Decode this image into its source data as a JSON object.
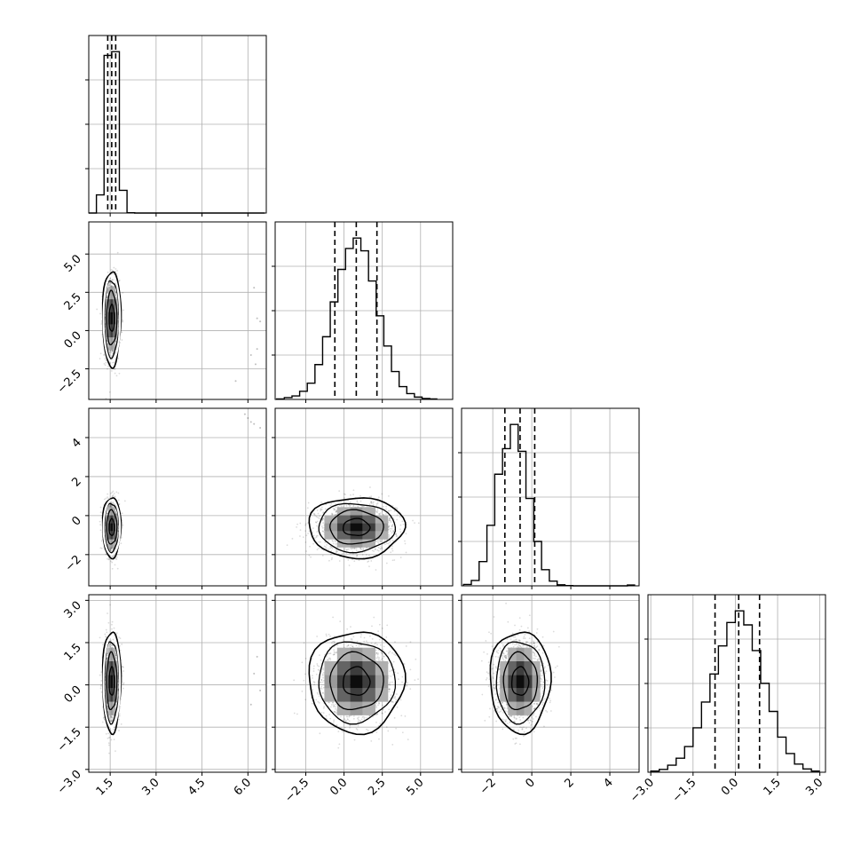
{
  "chart_data": {
    "type": "corner",
    "parameters": [
      {
        "ticks": [
          1.5,
          3.0,
          4.5,
          6.0
        ],
        "tick_labels": [
          "1.5",
          "3.0",
          "4.5",
          "6.0"
        ],
        "range": [
          0.8,
          6.6
        ]
      },
      {
        "ticks": [
          -2.5,
          0.0,
          2.5,
          5.0
        ],
        "tick_labels": [
          "−2.5",
          "0.0",
          "2.5",
          "5.0"
        ],
        "range": [
          -4.5,
          7.1
        ]
      },
      {
        "ticks": [
          -2,
          0,
          2,
          4
        ],
        "tick_labels": [
          "−2",
          "0",
          "2",
          "4"
        ],
        "range": [
          -3.6,
          5.5
        ]
      },
      {
        "ticks": [
          -3.0,
          -1.5,
          0.0,
          1.5,
          3.0
        ],
        "tick_labels": [
          "−3.0",
          "−1.5",
          "0.0",
          "1.5",
          "3.0"
        ],
        "range": [
          -3.1,
          3.2
        ]
      }
    ],
    "quantiles": [
      [
        1.42,
        1.55,
        1.68
      ],
      [
        -0.6,
        0.8,
        2.15
      ],
      [
        -1.38,
        -0.6,
        0.15
      ],
      [
        -0.72,
        0.12,
        0.86
      ]
    ],
    "marginals": [
      {
        "bin_edges": [
          0.8,
          1.05,
          1.3,
          1.55,
          1.8,
          2.05,
          2.3,
          2.55,
          2.8,
          3.05,
          3.3,
          3.55,
          3.8,
          4.05,
          4.3,
          4.55,
          4.8,
          5.05,
          5.3,
          5.55,
          5.8,
          6.05,
          6.3,
          6.55
        ],
        "counts": [
          0,
          120,
          1040,
          1065,
          150,
          2,
          0,
          0,
          0,
          0,
          0,
          0,
          0,
          0,
          0,
          0,
          0,
          0,
          0,
          0,
          0,
          0,
          0
        ]
      },
      {
        "bin_edges": [
          -4.4,
          -3.9,
          -3.4,
          -2.9,
          -2.4,
          -1.9,
          -1.4,
          -0.9,
          -0.4,
          0.1,
          0.6,
          1.1,
          1.6,
          2.1,
          2.6,
          3.1,
          3.6,
          4.1,
          4.6,
          5.1,
          5.6,
          6.1
        ],
        "counts": [
          2,
          8,
          15,
          35,
          70,
          150,
          270,
          420,
          560,
          650,
          695,
          640,
          510,
          360,
          230,
          120,
          55,
          25,
          10,
          4,
          2
        ]
      },
      {
        "bin_edges": [
          -3.5,
          -3.1,
          -2.7,
          -2.3,
          -1.9,
          -1.5,
          -1.1,
          -0.7,
          -0.3,
          0.1,
          0.5,
          0.9,
          1.3,
          1.7,
          2.1,
          2.5,
          2.9,
          3.3,
          3.7,
          4.1,
          4.5,
          4.9,
          5.3
        ],
        "counts": [
          10,
          40,
          180,
          450,
          830,
          1020,
          1200,
          1000,
          650,
          330,
          120,
          35,
          8,
          2,
          0,
          0,
          0,
          0,
          0,
          0,
          0,
          6
        ]
      },
      {
        "bin_edges": [
          -3.0,
          -2.7,
          -2.4,
          -2.1,
          -1.8,
          -1.5,
          -1.2,
          -0.9,
          -0.6,
          -0.3,
          0.0,
          0.3,
          0.6,
          0.9,
          1.2,
          1.5,
          1.8,
          2.1,
          2.4,
          2.7,
          3.0
        ],
        "counts": [
          5,
          12,
          30,
          60,
          110,
          190,
          300,
          420,
          540,
          640,
          690,
          630,
          520,
          380,
          260,
          150,
          80,
          35,
          14,
          5
        ]
      }
    ],
    "joints": [
      {
        "row": 1,
        "col": 0,
        "center": [
          1.55,
          0.8
        ],
        "sigma": [
          0.12,
          1.25
        ],
        "rho": 0.0
      },
      {
        "row": 2,
        "col": 0,
        "center": [
          1.55,
          -0.6
        ],
        "sigma": [
          0.12,
          0.62
        ],
        "rho": 0.0
      },
      {
        "row": 2,
        "col": 1,
        "center": [
          0.8,
          -0.6
        ],
        "sigma": [
          1.25,
          0.62
        ],
        "rho": 0.0
      },
      {
        "row": 3,
        "col": 0,
        "center": [
          1.55,
          0.12
        ],
        "sigma": [
          0.12,
          0.72
        ],
        "rho": 0.0
      },
      {
        "row": 3,
        "col": 1,
        "center": [
          0.8,
          0.12
        ],
        "sigma": [
          1.25,
          0.72
        ],
        "rho": 0.0
      },
      {
        "row": 3,
        "col": 2,
        "center": [
          -0.6,
          0.12
        ],
        "sigma": [
          0.62,
          0.72
        ],
        "rho": 0.0
      }
    ],
    "outliers": [
      {
        "row": 1,
        "col": 0,
        "points": [
          [
            6.2,
            2.8
          ],
          [
            6.3,
            0.8
          ],
          [
            6.1,
            -1.6
          ],
          [
            6.25,
            -2.2
          ],
          [
            5.6,
            -3.3
          ],
          [
            6.4,
            0.6
          ],
          [
            6.3,
            -1.2
          ]
        ]
      },
      {
        "row": 2,
        "col": 0,
        "points": [
          [
            6.0,
            5.0
          ],
          [
            6.2,
            4.7
          ],
          [
            6.4,
            4.5
          ],
          [
            5.9,
            5.2
          ],
          [
            6.1,
            4.8
          ]
        ]
      },
      {
        "row": 3,
        "col": 0,
        "points": [
          [
            6.3,
            1.0
          ],
          [
            6.2,
            0.4
          ],
          [
            6.4,
            -0.2
          ],
          [
            6.1,
            -0.7
          ]
        ]
      }
    ],
    "contour_levels": [
      0.12,
      0.39,
      0.68,
      0.86
    ],
    "grid": true,
    "colors": {
      "line": "#000000",
      "grid": "#b0b0b0",
      "scatter": "#000000",
      "hist2d_dark": "#000000"
    }
  }
}
